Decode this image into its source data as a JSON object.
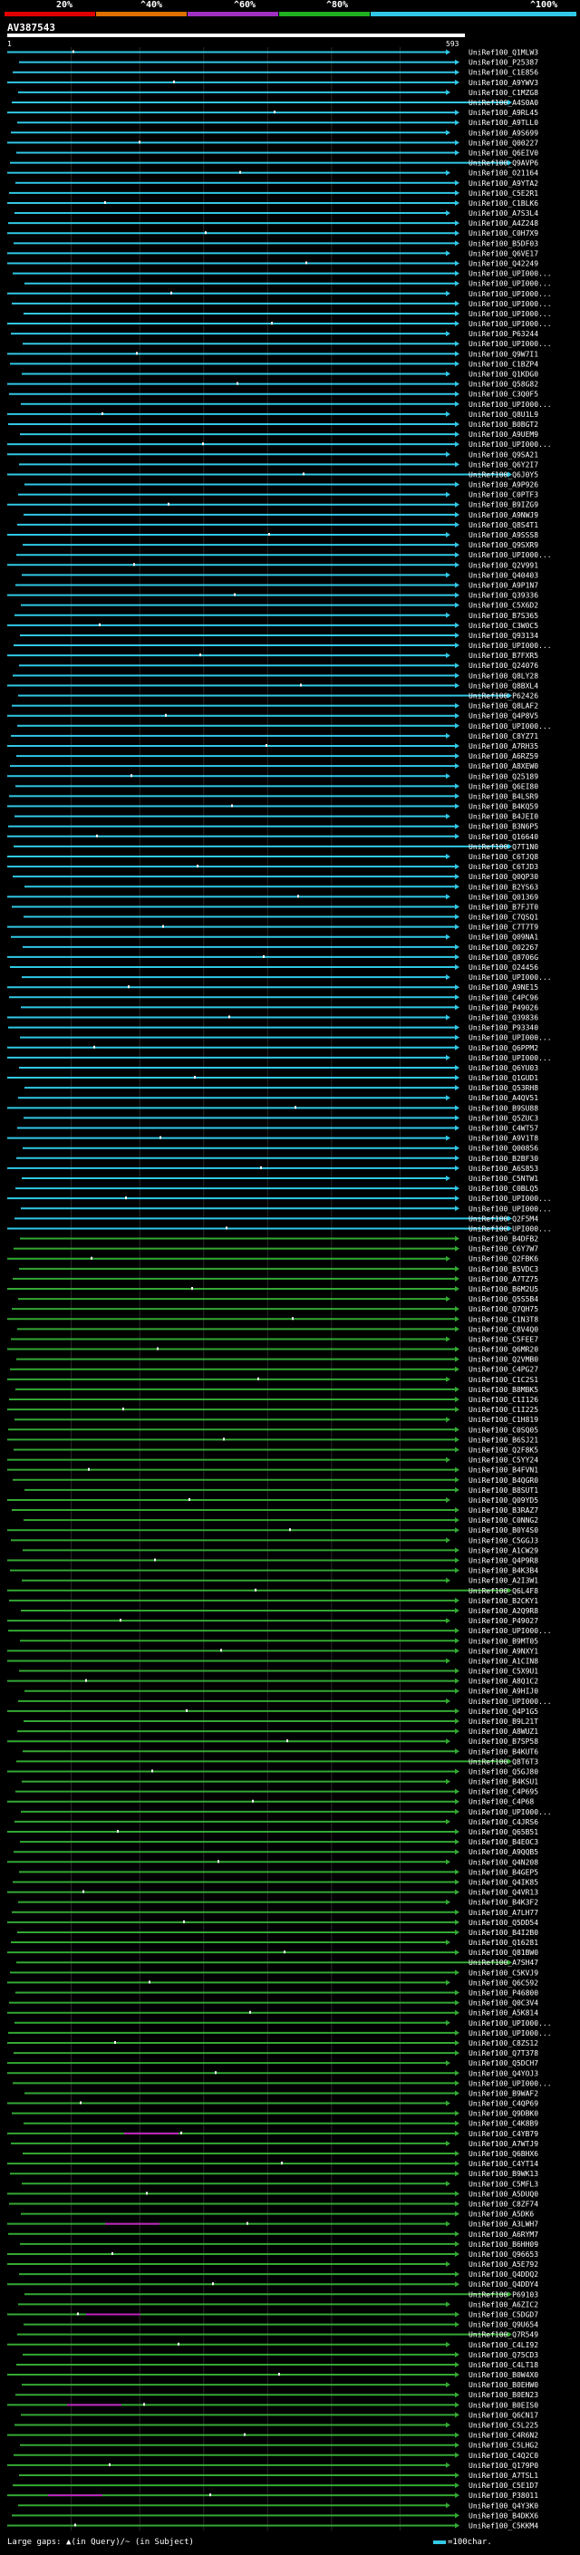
{
  "legend": {
    "labels": [
      "20%",
      "^40%",
      "^60%",
      "^80%",
      "^100%"
    ],
    "colors": [
      "#e00000",
      "#e07000",
      "#a030c0",
      "#20b020",
      "#30c8e6"
    ]
  },
  "query": {
    "id": "AV387543",
    "start": "1",
    "end": "593"
  },
  "colors": {
    "hi": "#30c8e6",
    "mid": "#33a833",
    "low": "#c020c0",
    "marker": "#ffffff",
    "grid": "#2a2a2a"
  },
  "hits": [
    "UniRef100_Q1MLW3",
    "UniRef100_P25387",
    "UniRef100_C1E856",
    "UniRef100_A9YWV3",
    "UniRef100_C1MZG8",
    "UniRef100_A4S0A0",
    "UniRef100_A9RL45",
    "UniRef100_A9TLL0",
    "UniRef100_A9S699",
    "UniRef100_Q00227",
    "UniRef100_Q6EIV0",
    "UniRef100_Q9AVP6",
    "UniRef100_O21164",
    "UniRef100_A9YTA2",
    "UniRef100_C5E2R1",
    "UniRef100_C1BLK6",
    "UniRef100_A7S3L4",
    "UniRef100_A4Z248",
    "UniRef100_C0H7X9",
    "UniRef100_B5DF03",
    "UniRef100_Q6VE17",
    "UniRef100_Q42249",
    "UniRef100_UPI000...",
    "UniRef100_UPI000...",
    "UniRef100_UPI000...",
    "UniRef100_UPI000...",
    "UniRef100_UPI000...",
    "UniRef100_UPI000...",
    "UniRef100_P63244",
    "UniRef100_UPI000...",
    "UniRef100_Q9W7I1",
    "UniRef100_C1BZP4",
    "UniRef100_Q1KDG0",
    "UniRef100_Q58G82",
    "UniRef100_C3Q0F5",
    "UniRef100_UPI000...",
    "UniRef100_Q8U1L9",
    "UniRef100_B0BGT2",
    "UniRef100_A9UEM9",
    "UniRef100_UPI000...",
    "UniRef100_Q9SA21",
    "UniRef100_Q6Y2I7",
    "UniRef100_Q6J0Y5",
    "UniRef100_A9P926",
    "UniRef100_C0PTF3",
    "UniRef100_B9IZG9",
    "UniRef100_A9NWJ9",
    "UniRef100_Q8S4T1",
    "UniRef100_A9SSS8",
    "UniRef100_Q9SXR9",
    "UniRef100_UPI000...",
    "UniRef100_Q2V991",
    "UniRef100_Q40403",
    "UniRef100_A9P1N7",
    "UniRef100_Q39336",
    "UniRef100_C5X6D2",
    "UniRef100_B7S365",
    "UniRef100_C3W0C5",
    "UniRef100_Q93134",
    "UniRef100_UPI000...",
    "UniRef100_B7FXR5",
    "UniRef100_Q24076",
    "UniRef100_Q8LY28",
    "UniRef100_Q8BXL4",
    "UniRef100_P62426",
    "UniRef100_Q8LAF2",
    "UniRef100_Q4P8V5",
    "UniRef100_UPI000...",
    "UniRef100_C8YZ71",
    "UniRef100_A7RH35",
    "UniRef100_A6RZ59",
    "UniRef100_A8XEW0",
    "UniRef100_Q25189",
    "UniRef100_Q6EI80",
    "UniRef100_B4LSR9",
    "UniRef100_B4KQ59",
    "UniRef100_B4JEI0",
    "UniRef100_B3N6P5",
    "UniRef100_Q16640",
    "UniRef100_Q7T1N0",
    "UniRef100_C6TJQ8",
    "UniRef100_C6TJD3",
    "UniRef100_Q0QP30",
    "UniRef100_B2YS63",
    "UniRef100_Q01369",
    "UniRef100_B7FJT0",
    "UniRef100_C7QSQ1",
    "UniRef100_C7T7T9",
    "UniRef100_Q09NA1",
    "UniRef100_O02267",
    "UniRef100_Q8706G",
    "UniRef100_O24456",
    "UniRef100_UPI000...",
    "UniRef100_A9NE15",
    "UniRef100_C4PC96",
    "UniRef100_P49026",
    "UniRef100_Q39836",
    "UniRef100_P93340",
    "UniRef100_UPI000...",
    "UniRef100_Q6PPM2",
    "UniRef100_UPI000...",
    "UniRef100_Q6YU03",
    "UniRef100_Q1GUD1",
    "UniRef100_Q53RH8",
    "UniRef100_A4QV51",
    "UniRef100_B9SU88",
    "UniRef100_Q5ZUC3",
    "UniRef100_C4WT57",
    "UniRef100_A9V1T8",
    "UniRef100_Q00856",
    "UniRef100_B2BF30",
    "UniRef100_A6S853",
    "UniRef100_C5NTW1",
    "UniRef100_C0BLQ5",
    "UniRef100_UPI000...",
    "UniRef100_UPI000...",
    "UniRef100_Q2F5M4",
    "UniRef100_UPI000...",
    "UniRef100_B4DFB2",
    "UniRef100_C6Y7W7",
    "UniRef100_Q2FBK6",
    "UniRef100_B5VDC3",
    "UniRef100_A7TZ75",
    "UniRef100_B6M2U5",
    "UniRef100_Q5S5B4",
    "UniRef100_Q7QH75",
    "UniRef100_C1N3T8",
    "UniRef100_C8V4Q0",
    "UniRef100_C5FEE7",
    "UniRef100_Q6MR20",
    "UniRef100_Q2VMB0",
    "UniRef100_C4PG27",
    "UniRef100_C1C2S1",
    "UniRef100_B8MBK5",
    "UniRef100_C1I126",
    "UniRef100_C1I225",
    "UniRef100_C1H819",
    "UniRef100_C0SQ05",
    "UniRef100_B6SJ21",
    "UniRef100_Q2F8K5",
    "UniRef100_C5YY24",
    "UniRef100_B4FVN1",
    "UniRef100_B4QGR0",
    "UniRef100_B8SUT1",
    "UniRef100_Q09YD5",
    "UniRef100_B3RAZ7",
    "UniRef100_C0NNG2",
    "UniRef100_B0Y4S0",
    "UniRef100_C5GGJ3",
    "UniRef100_A1CW29",
    "UniRef100_Q4P9R8",
    "UniRef100_B4K3B4",
    "UniRef100_A2I3W1",
    "UniRef100_Q6L4F8",
    "UniRef100_B2CKY1",
    "UniRef100_A2Q9R8",
    "UniRef100_P49027",
    "UniRef100_UPI000...",
    "UniRef100_B9MT05",
    "UniRef100_A9NXY1",
    "UniRef100_A1CIN8",
    "UniRef100_C5X9U1",
    "UniRef100_A8Q1C2",
    "UniRef100_A9HIJ0",
    "UniRef100_UPI000...",
    "UniRef100_Q4P1G5",
    "UniRef100_B9L21T",
    "UniRef100_A8WUZ1",
    "UniRef100_B7SP58",
    "UniRef100_B4KUT6",
    "UniRef100_Q8T6T3",
    "UniRef100_Q5GJ80",
    "UniRef100_B4KSU1",
    "UniRef100_C4P695",
    "UniRef100_C4P68",
    "UniRef100_UPI000...",
    "UniRef100_C4JRS6",
    "UniRef100_Q65B51",
    "UniRef100_B4EOC3",
    "UniRef100_A9QQB5",
    "UniRef100_Q4N208",
    "UniRef100_B4GEP5",
    "UniRef100_Q4IK85",
    "UniRef100_Q4VR13",
    "UniRef100_B4K3F2",
    "UniRef100_A7LH77",
    "UniRef100_Q5DD54",
    "UniRef100_B4I2B0",
    "UniRef100_Q16281",
    "UniRef100_Q81BW0",
    "UniRef100_A7SH47",
    "UniRef100_C5KVJ9",
    "UniRef100_Q6C592",
    "UniRef100_P46800",
    "UniRef100_Q0C3V4",
    "UniRef100_A5K814",
    "UniRef100_UPI000...",
    "UniRef100_UPI000...",
    "UniRef100_C8ZS12",
    "UniRef100_Q7T378",
    "UniRef100_Q5DCH7",
    "UniRef100_Q4YOJ3",
    "UniRef100_UPI000...",
    "UniRef100_B9WAF2",
    "UniRef100_C4QP69",
    "UniRef100_Q9DBK0",
    "UniRef100_C4K8B9",
    "UniRef100_C4YB79",
    "UniRef100_A7WTJ9",
    "UniRef100_Q6BHX6",
    "UniRef100_C4YT14",
    "UniRef100_B9WK13",
    "UniRef100_C5MFL3",
    "UniRef100_A5DUQ0",
    "UniRef100_C8ZF74",
    "UniRef100_A5DK6",
    "UniRef100_A3LWH7",
    "UniRef100_A6RYM7",
    "UniRef100_B6HH09",
    "UniRef100_Q96653",
    "UniRef100_A5E792",
    "UniRef100_Q4DDQ2",
    "UniRef100_Q4DDY4",
    "UniRef100_P69103",
    "UniRef100_A6ZIC2",
    "UniRef100_C5DGD7",
    "UniRef100_Q9U654",
    "UniRef100_Q7R549",
    "UniRef100_C4LI92",
    "UniRef100_Q75CD3",
    "UniRef100_C4LT18",
    "UniRef100_B0W4X0",
    "UniRef100_B0EHW0",
    "UniRef100_B0EN23",
    "UniRef100_B0EIS0",
    "UniRef100_Q6CN17",
    "UniRef100_C5L225",
    "UniRef100_C4R6N2",
    "UniRef100_C5LHG2",
    "UniRef100_C4Q2C0",
    "UniRef100_Q179P0",
    "UniRef100_A7TSL1",
    "UniRef100_C5E1D7",
    "UniRef100_P38011",
    "UniRef100_Q4Y3K0",
    "UniRef100_B4DKX6",
    "UniRef100_C5KKM4"
  ],
  "footer": {
    "left": "Large gaps: ▲(in Query)/~ (in Subject)",
    "right": "=100char."
  }
}
